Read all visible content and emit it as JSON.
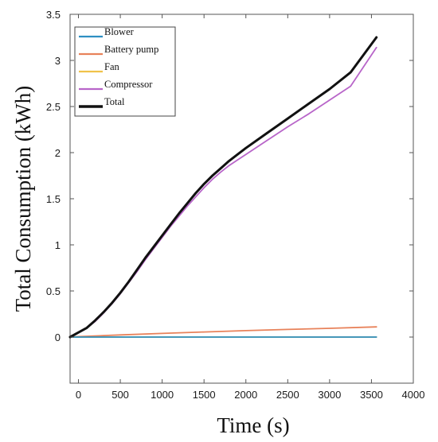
{
  "chart_data": {
    "type": "line",
    "title": "",
    "xlabel": "Time (s)",
    "ylabel": "Total Consumption (kWh)",
    "xlim": [
      -100,
      4000
    ],
    "ylim": [
      -0.5,
      3.5
    ],
    "xticks": [
      "0",
      "500",
      "1000",
      "1500",
      "2000",
      "2500",
      "3000",
      "3500",
      "4000"
    ],
    "yticks": [
      "0",
      "0.5",
      "1",
      "1.5",
      "2",
      "2.5",
      "3",
      "3.5"
    ],
    "grid": false,
    "legend_position": "top-left",
    "series": [
      {
        "name": "Blower",
        "color": "#2e8fc2",
        "x": [
          -100,
          0,
          500,
          1000,
          1500,
          2000,
          2500,
          3000,
          3560
        ],
        "y": [
          0.0,
          0.0,
          0.0,
          0.0,
          0.0,
          0.0,
          0.0,
          0.0,
          0.0
        ]
      },
      {
        "name": "Battery pump",
        "color": "#e8825a",
        "x": [
          -100,
          0,
          500,
          1000,
          1500,
          2000,
          2500,
          3000,
          3560
        ],
        "y": [
          0.0,
          0.005,
          0.023,
          0.04,
          0.055,
          0.07,
          0.083,
          0.095,
          0.11
        ]
      },
      {
        "name": "Fan",
        "color": "#f0c24a",
        "x": [
          -100,
          0,
          500,
          1000,
          1500,
          2000,
          2500,
          3000,
          3560
        ],
        "y": [
          0.0,
          0.0,
          0.0,
          0.0,
          0.0,
          0.0,
          0.0,
          0.0,
          0.0
        ]
      },
      {
        "name": "Compressor",
        "color": "#b865c9",
        "x": [
          -100,
          0,
          100,
          200,
          300,
          400,
          500,
          600,
          700,
          800,
          900,
          1000,
          1100,
          1200,
          1300,
          1400,
          1500,
          1600,
          1700,
          1800,
          1900,
          2000,
          2250,
          2500,
          2750,
          3000,
          3250,
          3560
        ],
        "y": [
          0.0,
          0.05,
          0.1,
          0.17,
          0.26,
          0.36,
          0.47,
          0.59,
          0.71,
          0.84,
          0.96,
          1.08,
          1.2,
          1.31,
          1.42,
          1.52,
          1.62,
          1.71,
          1.79,
          1.86,
          1.92,
          1.98,
          2.13,
          2.28,
          2.42,
          2.57,
          2.72,
          3.14
        ]
      },
      {
        "name": "Total",
        "color": "#111111",
        "x": [
          -100,
          0,
          100,
          200,
          300,
          400,
          500,
          600,
          700,
          800,
          900,
          1000,
          1100,
          1200,
          1300,
          1400,
          1500,
          1600,
          1700,
          1800,
          1900,
          2000,
          2250,
          2500,
          2750,
          3000,
          3250,
          3560
        ],
        "y": [
          0.0,
          0.05,
          0.1,
          0.18,
          0.27,
          0.37,
          0.48,
          0.6,
          0.73,
          0.86,
          0.98,
          1.1,
          1.22,
          1.34,
          1.45,
          1.56,
          1.66,
          1.75,
          1.83,
          1.91,
          1.98,
          2.05,
          2.21,
          2.37,
          2.53,
          2.69,
          2.87,
          3.25
        ]
      }
    ]
  }
}
